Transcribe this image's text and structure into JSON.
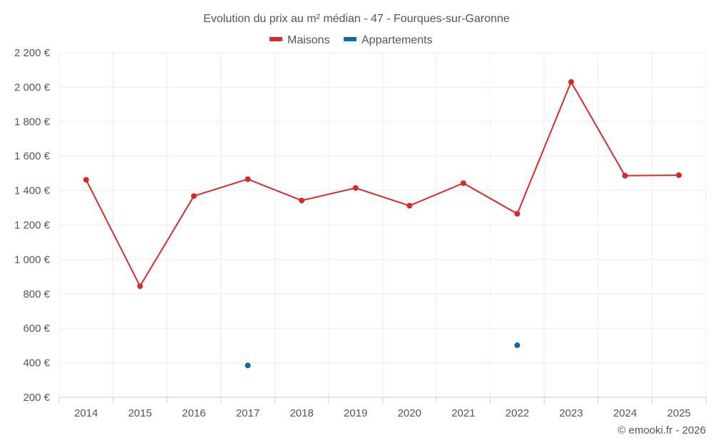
{
  "chart_data": {
    "type": "line",
    "title": "Evolution du prix au m² médian - 47 - Fourques-sur-Garonne",
    "xlabel": "",
    "ylabel": "",
    "categories": [
      "2014",
      "2015",
      "2016",
      "2017",
      "2018",
      "2019",
      "2020",
      "2021",
      "2022",
      "2023",
      "2024",
      "2025"
    ],
    "ylim": [
      200,
      2200
    ],
    "y_ticks": [
      200,
      400,
      600,
      800,
      1000,
      1200,
      1400,
      1600,
      1800,
      2000,
      2200
    ],
    "y_tick_labels": [
      "200 €",
      "400 €",
      "600 €",
      "800 €",
      "1 000 €",
      "1 200 €",
      "1 400 €",
      "1 600 €",
      "1 800 €",
      "2 000 €",
      "2 200 €"
    ],
    "legend_position": "top-center",
    "grid": true,
    "series": [
      {
        "name": "Maisons",
        "color": "#d42a2a",
        "line": true,
        "values": [
          1462,
          845,
          1368,
          1466,
          1342,
          1415,
          1312,
          1443,
          1265,
          2030,
          1486,
          1489
        ]
      },
      {
        "name": "Appartements",
        "color": "#0b6aa2",
        "line": false,
        "values": [
          null,
          null,
          null,
          385,
          null,
          null,
          null,
          null,
          502,
          null,
          null,
          null
        ]
      }
    ]
  },
  "credit": "© emooki.fr - 2026"
}
